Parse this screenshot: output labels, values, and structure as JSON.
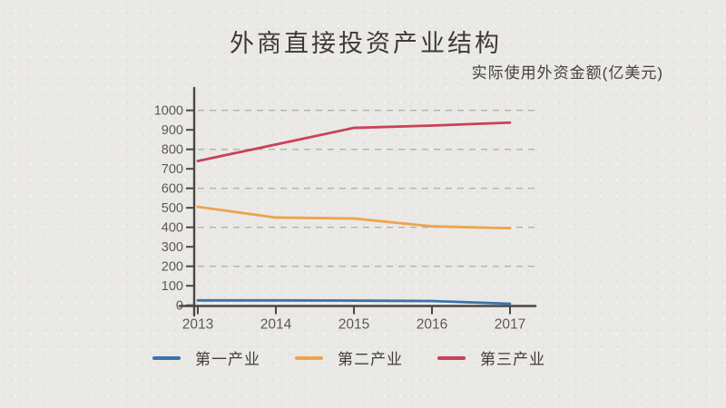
{
  "page": {
    "background_color": "#eae9e6"
  },
  "header": {
    "title": "外商直接投资产业结构",
    "subtitle": "实际使用外资金额(亿美元)"
  },
  "chart_data": {
    "type": "line",
    "title": "外商直接投资产业结构",
    "subtitle": "实际使用外资金额(亿美元)",
    "categories": [
      "2013",
      "2014",
      "2015",
      "2016",
      "2017"
    ],
    "series": [
      {
        "name": "第一产业",
        "color": "#3a72ad",
        "values": [
          25,
          25,
          24,
          22,
          8
        ]
      },
      {
        "name": "第二产业",
        "color": "#eda44a",
        "values": [
          505,
          450,
          445,
          405,
          395
        ]
      },
      {
        "name": "第三产业",
        "color": "#c8425a",
        "values": [
          740,
          825,
          910,
          922,
          937
        ]
      }
    ],
    "ylim": [
      0,
      1000
    ],
    "ytick_step": 100,
    "yticks": [
      0,
      100,
      200,
      300,
      400,
      500,
      600,
      700,
      800,
      900,
      1000
    ],
    "grid_values": [
      200,
      400,
      600,
      800,
      1000
    ],
    "grid_style": "dashed-horizontal",
    "legend_position": "bottom",
    "xlabel": "",
    "ylabel": "",
    "axis_color": "#4b4742",
    "grid_color": "#b3b1ad",
    "tick_label_color": "#5c5955"
  }
}
